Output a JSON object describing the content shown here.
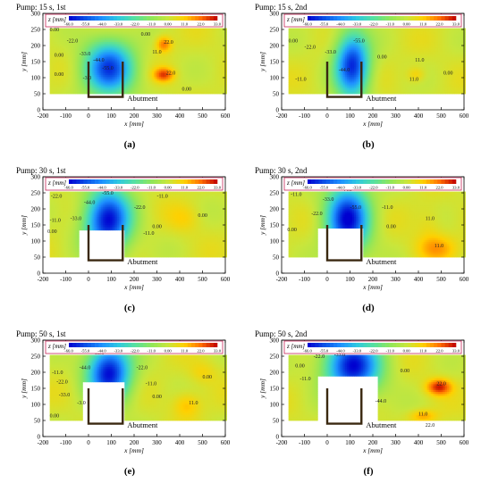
{
  "chart_data": {
    "type": "heatmap",
    "colorbar": {
      "label": "z [mm]",
      "ticks": [
        -66.0,
        -55.0,
        -44.0,
        -33.0,
        -22.0,
        -11.0,
        0.0,
        11.0,
        22.0,
        33.0
      ],
      "tick_labels": [
        "-66.0",
        "-55.0",
        "-44.0",
        "-33.0",
        "-22.0",
        "-11.0",
        "0.00",
        "11.0",
        "22.0",
        "33.0"
      ],
      "range": [
        -66,
        33
      ],
      "colors": [
        "#0000d0",
        "#0a4fe6",
        "#1e90ff",
        "#2ec8e0",
        "#56e0a0",
        "#8fe65a",
        "#c8e63c",
        "#ffd000",
        "#ff7000",
        "#c00000"
      ]
    },
    "axes": {
      "xlabel": "x [mm]",
      "ylabel": "y [mm]",
      "xlim": [
        -200,
        600
      ],
      "ylim": [
        0,
        300
      ],
      "xticks": [
        -200,
        -100,
        0,
        100,
        200,
        300,
        400,
        500,
        600
      ],
      "yticks": [
        0,
        50,
        100,
        150,
        200,
        250,
        300
      ]
    },
    "abutment_label": "Abutment",
    "panels": [
      {
        "id": "a",
        "title": "Pump: 15 s, 1st",
        "letter": "(a)",
        "scour": [
          {
            "x": 90,
            "y": 130,
            "sx": 110,
            "sy": 85,
            "d": -58
          }
        ],
        "mounds": [
          {
            "x": 330,
            "y": 110,
            "sx": 45,
            "sy": 22,
            "d": 24
          },
          {
            "x": 330,
            "y": 205,
            "sx": 35,
            "sy": 25,
            "d": 20
          }
        ],
        "hole": null,
        "labels": [
          {
            "t": "0.00",
            "x": -170,
            "y": 245
          },
          {
            "t": "0.00",
            "x": -150,
            "y": 165
          },
          {
            "t": "0.00",
            "x": -150,
            "y": 105
          },
          {
            "t": "-22.0",
            "x": -95,
            "y": 210
          },
          {
            "t": "-33.0",
            "x": -40,
            "y": 170
          },
          {
            "t": "-44.0",
            "x": 20,
            "y": 150
          },
          {
            "t": "-55.0",
            "x": 60,
            "y": 125
          },
          {
            "t": "-3.0",
            "x": -25,
            "y": 95
          },
          {
            "t": "0.00",
            "x": 230,
            "y": 230
          },
          {
            "t": "11.0",
            "x": 280,
            "y": 175
          },
          {
            "t": "22.0",
            "x": 340,
            "y": 110
          },
          {
            "t": "22.0",
            "x": 330,
            "y": 205
          },
          {
            "t": "0.00",
            "x": 410,
            "y": 60
          }
        ]
      },
      {
        "id": "b",
        "title": "Pump: 15 s, 2nd",
        "letter": "(b)",
        "scour": [
          {
            "x": 110,
            "y": 140,
            "sx": 75,
            "sy": 100,
            "d": -62
          }
        ],
        "mounds": [
          {
            "x": 390,
            "y": 110,
            "sx": 40,
            "sy": 25,
            "d": 10
          }
        ],
        "hole": null,
        "labels": [
          {
            "t": "-22.0",
            "x": -100,
            "y": 190
          },
          {
            "t": "-11.0",
            "x": -140,
            "y": 90
          },
          {
            "t": "0.00",
            "x": -170,
            "y": 210
          },
          {
            "t": "-33.0",
            "x": -10,
            "y": 175
          },
          {
            "t": "-44.0",
            "x": 50,
            "y": 120
          },
          {
            "t": "-55.0",
            "x": 115,
            "y": 210
          },
          {
            "t": "0.00",
            "x": 220,
            "y": 160
          },
          {
            "t": "11.0",
            "x": 385,
            "y": 150
          },
          {
            "t": "11.0",
            "x": 360,
            "y": 90
          },
          {
            "t": "0.00",
            "x": 510,
            "y": 110
          }
        ]
      },
      {
        "id": "c",
        "title": "Pump: 30 s, 1st",
        "letter": "(c)",
        "scour": [
          {
            "x": 85,
            "y": 165,
            "sx": 100,
            "sy": 100,
            "d": -66
          }
        ],
        "mounds": [
          {
            "x": 420,
            "y": 170,
            "sx": 70,
            "sy": 45,
            "d": 7
          }
        ],
        "hole": {
          "x0": -40,
          "x1": 160,
          "y0": 40,
          "y1": 135
        },
        "labels": [
          {
            "t": "-22.0",
            "x": -165,
            "y": 235
          },
          {
            "t": "-11.0",
            "x": -170,
            "y": 160
          },
          {
            "t": "0.00",
            "x": -180,
            "y": 125
          },
          {
            "t": "-33.0",
            "x": -80,
            "y": 165
          },
          {
            "t": "-44.0",
            "x": -20,
            "y": 215
          },
          {
            "t": "-55.0",
            "x": 60,
            "y": 245
          },
          {
            "t": "-22.0",
            "x": 200,
            "y": 200
          },
          {
            "t": "-11.0",
            "x": 240,
            "y": 120
          },
          {
            "t": "0.00",
            "x": 280,
            "y": 140
          },
          {
            "t": "-11.0",
            "x": 300,
            "y": 235
          },
          {
            "t": "0.00",
            "x": 480,
            "y": 175
          }
        ]
      },
      {
        "id": "d",
        "title": "Pump: 30 s, 2nd",
        "letter": "(d)",
        "scour": [
          {
            "x": 90,
            "y": 170,
            "sx": 95,
            "sy": 105,
            "d": -66
          }
        ],
        "mounds": [
          {
            "x": 480,
            "y": 80,
            "sx": 90,
            "sy": 40,
            "d": 13
          },
          {
            "x": 450,
            "y": 150,
            "sx": 60,
            "sy": 60,
            "d": 6
          }
        ],
        "hole": {
          "x0": -40,
          "x1": 155,
          "y0": 40,
          "y1": 140
        },
        "labels": [
          {
            "t": "-11.0",
            "x": -160,
            "y": 240
          },
          {
            "t": "0.00",
            "x": -175,
            "y": 130
          },
          {
            "t": "-22.0",
            "x": -70,
            "y": 180
          },
          {
            "t": "-33.0",
            "x": -20,
            "y": 225
          },
          {
            "t": "-44.0",
            "x": 60,
            "y": 255
          },
          {
            "t": "-55.0",
            "x": 100,
            "y": 200
          },
          {
            "t": "-11.0",
            "x": 240,
            "y": 200
          },
          {
            "t": "0.00",
            "x": 260,
            "y": 140
          },
          {
            "t": "11.0",
            "x": 430,
            "y": 165
          },
          {
            "t": "11.0",
            "x": 470,
            "y": 80
          }
        ]
      },
      {
        "id": "e",
        "title": "Pump: 50 s, 1st",
        "letter": "(e)",
        "scour": [
          {
            "x": 90,
            "y": 200,
            "sx": 95,
            "sy": 90,
            "d": -66
          }
        ],
        "mounds": [
          {
            "x": 430,
            "y": 100,
            "sx": 60,
            "sy": 40,
            "d": 12
          },
          {
            "x": 500,
            "y": 200,
            "sx": 60,
            "sy": 35,
            "d": 7
          }
        ],
        "hole": {
          "x0": -30,
          "x1": 160,
          "y0": 35,
          "y1": 170
        },
        "labels": [
          {
            "t": "-11.0",
            "x": -160,
            "y": 195
          },
          {
            "t": "-22.0",
            "x": -140,
            "y": 165
          },
          {
            "t": "-33.0",
            "x": -130,
            "y": 125
          },
          {
            "t": "0.00",
            "x": -170,
            "y": 60
          },
          {
            "t": "-44.0",
            "x": -40,
            "y": 210
          },
          {
            "t": "-55.0",
            "x": 20,
            "y": 255
          },
          {
            "t": "-3.0",
            "x": -50,
            "y": 100
          },
          {
            "t": "-22.0",
            "x": 210,
            "y": 210
          },
          {
            "t": "-11.0",
            "x": 250,
            "y": 160
          },
          {
            "t": "0.00",
            "x": 280,
            "y": 120
          },
          {
            "t": "11.0",
            "x": 440,
            "y": 100
          },
          {
            "t": "0.00",
            "x": 500,
            "y": 180
          }
        ]
      },
      {
        "id": "f",
        "title": "Pump: 50 s, 2nd",
        "letter": "(f)",
        "scour": [
          {
            "x": 110,
            "y": 220,
            "sx": 120,
            "sy": 90,
            "d": -66
          }
        ],
        "mounds": [
          {
            "x": 490,
            "y": 155,
            "sx": 55,
            "sy": 25,
            "d": 28
          },
          {
            "x": 420,
            "y": 65,
            "sx": 60,
            "sy": 20,
            "d": 14
          }
        ],
        "hole": {
          "x0": -40,
          "x1": 220,
          "y0": 30,
          "y1": 190
        },
        "labels": [
          {
            "t": "0.00",
            "x": -140,
            "y": 215
          },
          {
            "t": "-11.0",
            "x": -120,
            "y": 175
          },
          {
            "t": "-22.0",
            "x": -60,
            "y": 245
          },
          {
            "t": "-33.0",
            "x": 30,
            "y": 250
          },
          {
            "t": "-44.0",
            "x": 210,
            "y": 105
          },
          {
            "t": "0.00",
            "x": 320,
            "y": 200
          },
          {
            "t": "22.0",
            "x": 480,
            "y": 160
          },
          {
            "t": "11.0",
            "x": 400,
            "y": 65
          },
          {
            "t": "22.0",
            "x": 430,
            "y": 30
          }
        ]
      }
    ]
  }
}
